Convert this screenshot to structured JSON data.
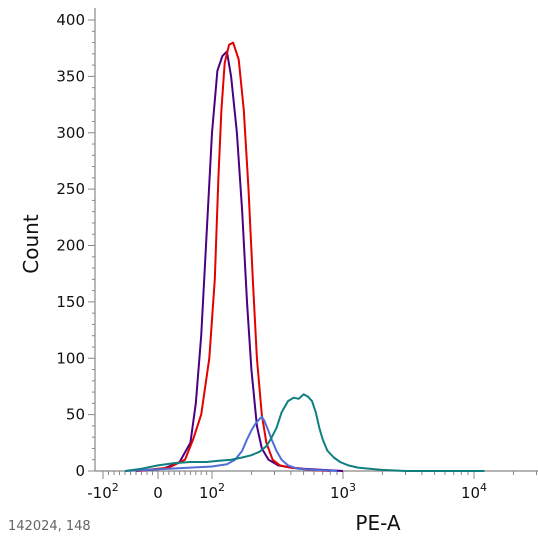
{
  "chart_data": {
    "type": "line",
    "title": "",
    "xlabel": "PE-A",
    "ylabel": "Count",
    "ylim": [
      0,
      400
    ],
    "y_ticks": [
      0,
      50,
      100,
      150,
      200,
      250,
      300,
      350,
      400
    ],
    "x_scale": "biexponential",
    "x_ticks": [
      {
        "value": -100,
        "base": "-10",
        "exp": "2"
      },
      {
        "value": 0,
        "base": "0",
        "exp": ""
      },
      {
        "value": 100,
        "base": "10",
        "exp": "2"
      },
      {
        "value": 1000,
        "base": "10",
        "exp": "3"
      },
      {
        "value": 10000,
        "base": "10",
        "exp": "4"
      }
    ],
    "grid": false,
    "series": [
      {
        "color": "#4b0082",
        "points": [
          [
            -40,
            0
          ],
          [
            10,
            2
          ],
          [
            40,
            8
          ],
          [
            60,
            25
          ],
          [
            70,
            60
          ],
          [
            80,
            120
          ],
          [
            90,
            210
          ],
          [
            100,
            300
          ],
          [
            110,
            355
          ],
          [
            120,
            368
          ],
          [
            130,
            372
          ],
          [
            140,
            350
          ],
          [
            155,
            300
          ],
          [
            170,
            230
          ],
          [
            185,
            150
          ],
          [
            200,
            90
          ],
          [
            220,
            40
          ],
          [
            240,
            20
          ],
          [
            270,
            10
          ],
          [
            320,
            5
          ],
          [
            400,
            3
          ],
          [
            500,
            2
          ],
          [
            700,
            1
          ],
          [
            1000,
            0
          ]
        ]
      },
      {
        "color": "#e50000",
        "points": [
          [
            -40,
            0
          ],
          [
            20,
            3
          ],
          [
            50,
            10
          ],
          [
            65,
            28
          ],
          [
            80,
            50
          ],
          [
            95,
            100
          ],
          [
            105,
            170
          ],
          [
            112,
            260
          ],
          [
            118,
            320
          ],
          [
            125,
            362
          ],
          [
            135,
            378
          ],
          [
            145,
            380
          ],
          [
            160,
            365
          ],
          [
            175,
            320
          ],
          [
            190,
            250
          ],
          [
            205,
            170
          ],
          [
            220,
            100
          ],
          [
            240,
            50
          ],
          [
            260,
            25
          ],
          [
            290,
            10
          ],
          [
            330,
            5
          ],
          [
            400,
            3
          ],
          [
            550,
            1
          ],
          [
            800,
            0
          ]
        ]
      },
      {
        "color": "#4f6fd6",
        "points": [
          [
            -60,
            0
          ],
          [
            -20,
            1
          ],
          [
            20,
            2
          ],
          [
            60,
            3
          ],
          [
            100,
            4
          ],
          [
            130,
            6
          ],
          [
            150,
            10
          ],
          [
            170,
            18
          ],
          [
            185,
            28
          ],
          [
            200,
            36
          ],
          [
            215,
            42
          ],
          [
            230,
            46
          ],
          [
            240,
            48
          ],
          [
            250,
            45
          ],
          [
            265,
            38
          ],
          [
            285,
            28
          ],
          [
            310,
            18
          ],
          [
            340,
            10
          ],
          [
            380,
            5
          ],
          [
            450,
            2
          ],
          [
            600,
            1
          ],
          [
            900,
            0
          ]
        ]
      },
      {
        "color": "#0f7f7f",
        "points": [
          [
            -60,
            0
          ],
          [
            -30,
            2
          ],
          [
            0,
            5
          ],
          [
            30,
            7
          ],
          [
            60,
            8
          ],
          [
            90,
            8
          ],
          [
            110,
            9
          ],
          [
            140,
            10
          ],
          [
            170,
            12
          ],
          [
            200,
            14
          ],
          [
            230,
            17
          ],
          [
            260,
            22
          ],
          [
            280,
            28
          ],
          [
            310,
            38
          ],
          [
            340,
            52
          ],
          [
            380,
            62
          ],
          [
            420,
            65
          ],
          [
            460,
            64
          ],
          [
            500,
            68
          ],
          [
            540,
            66
          ],
          [
            580,
            62
          ],
          [
            620,
            52
          ],
          [
            660,
            38
          ],
          [
            700,
            28
          ],
          [
            760,
            18
          ],
          [
            850,
            12
          ],
          [
            950,
            8
          ],
          [
            1100,
            5
          ],
          [
            1300,
            3
          ],
          [
            1600,
            2
          ],
          [
            2000,
            1
          ],
          [
            3000,
            0
          ],
          [
            12000,
            0
          ]
        ]
      }
    ]
  },
  "footer_text": "142024, 148"
}
